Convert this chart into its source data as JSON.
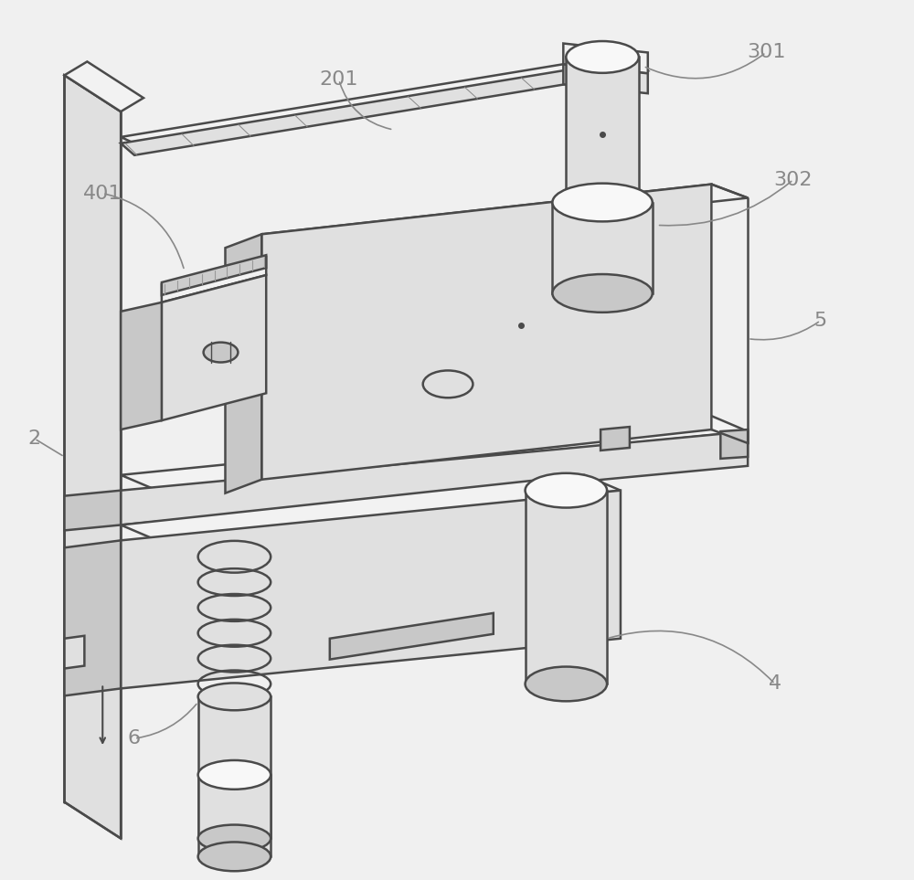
{
  "background_color": "#f0f0f0",
  "line_color": "#4a4a4a",
  "line_width": 1.8,
  "label_fontsize": 16,
  "label_color": "#888888",
  "figsize": [
    10.0,
    9.63
  ],
  "fc_top": "#f2f2f2",
  "fc_front": "#e0e0e0",
  "fc_side": "#c8c8c8",
  "fc_white": "#f8f8f8"
}
